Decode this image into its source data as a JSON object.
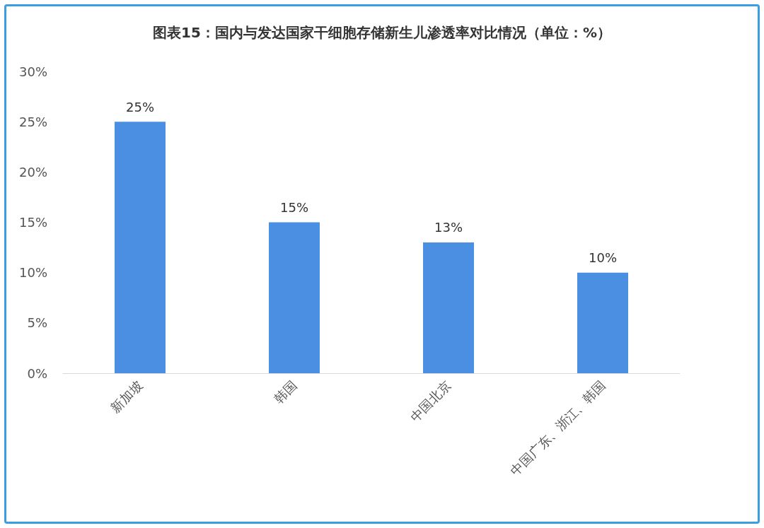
{
  "chart_data": {
    "type": "bar",
    "title": "图表15：国内与发达国家干细胞存储新生儿渗透率对比情况（单位：%）",
    "categories": [
      "新加坡",
      "韩国",
      "中国北京",
      "中国广东、浙江、韩国"
    ],
    "values": [
      25,
      15,
      13,
      10
    ],
    "color": "#4a8fe2",
    "value_labels": [
      "25%",
      "15%",
      "13%",
      "10%"
    ],
    "ylim": [
      0,
      30
    ],
    "yticks": [
      {
        "value": 0,
        "label": "0%"
      },
      {
        "value": 5,
        "label": "5%"
      },
      {
        "value": 10,
        "label": "10%"
      },
      {
        "value": 15,
        "label": "15%"
      },
      {
        "value": 20,
        "label": "20%"
      },
      {
        "value": 25,
        "label": "25%"
      },
      {
        "value": 30,
        "label": "30%"
      }
    ],
    "grid": false
  }
}
